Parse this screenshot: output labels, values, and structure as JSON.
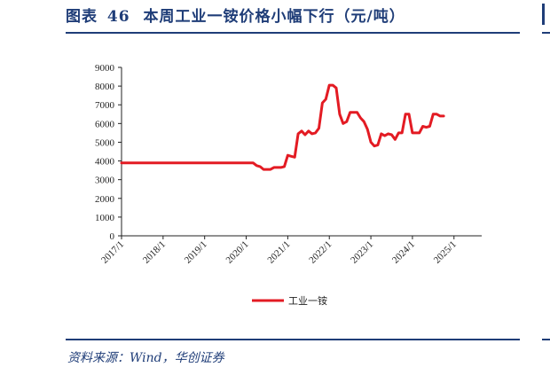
{
  "figure": {
    "title_prefix": "图表",
    "title_number": "46",
    "title_text": "本周工业一铵价格小幅下行（元/吨）",
    "source": "资料来源：Wind，华创证券"
  },
  "colors": {
    "brand": "#1f3d78",
    "series": "#e31b23"
  },
  "chart_data": {
    "type": "line",
    "title": "",
    "xlabel": "",
    "ylabel": "",
    "ylim": [
      0,
      9000
    ],
    "yticks": [
      0,
      1000,
      2000,
      3000,
      4000,
      5000,
      6000,
      7000,
      8000,
      9000
    ],
    "xlim": [
      "2017-01",
      "2025-09"
    ],
    "xticks": [
      "2017/1",
      "2018/1",
      "2019/1",
      "2020/1",
      "2021/1",
      "2022/1",
      "2023/1",
      "2024/1",
      "2025/1"
    ],
    "grid": false,
    "legend": "bottom",
    "series": [
      {
        "name": "工业一铵",
        "points": [
          [
            "2017-01",
            3900
          ],
          [
            "2018-01",
            3900
          ],
          [
            "2019-01",
            3900
          ],
          [
            "2020-01",
            3900
          ],
          [
            "2020-03",
            3900
          ],
          [
            "2020-04",
            3750
          ],
          [
            "2020-05",
            3700
          ],
          [
            "2020-06",
            3550
          ],
          [
            "2020-08",
            3550
          ],
          [
            "2020-09",
            3650
          ],
          [
            "2020-11",
            3650
          ],
          [
            "2020-12",
            3700
          ],
          [
            "2021-01",
            4300
          ],
          [
            "2021-02",
            4250
          ],
          [
            "2021-03",
            4200
          ],
          [
            "2021-04",
            5450
          ],
          [
            "2021-05",
            5600
          ],
          [
            "2021-06",
            5400
          ],
          [
            "2021-07",
            5600
          ],
          [
            "2021-08",
            5450
          ],
          [
            "2021-09",
            5500
          ],
          [
            "2021-10",
            5750
          ],
          [
            "2021-11",
            7100
          ],
          [
            "2021-12",
            7300
          ],
          [
            "2022-01",
            8050
          ],
          [
            "2022-02",
            8050
          ],
          [
            "2022-03",
            7900
          ],
          [
            "2022-04",
            6500
          ],
          [
            "2022-05",
            6000
          ],
          [
            "2022-06",
            6100
          ],
          [
            "2022-07",
            6600
          ],
          [
            "2022-08",
            6600
          ],
          [
            "2022-09",
            6600
          ],
          [
            "2022-10",
            6300
          ],
          [
            "2022-11",
            6100
          ],
          [
            "2022-12",
            5700
          ],
          [
            "2023-01",
            5000
          ],
          [
            "2023-02",
            4800
          ],
          [
            "2023-03",
            4850
          ],
          [
            "2023-04",
            5450
          ],
          [
            "2023-05",
            5350
          ],
          [
            "2023-06",
            5450
          ],
          [
            "2023-07",
            5400
          ],
          [
            "2023-08",
            5150
          ],
          [
            "2023-09",
            5500
          ],
          [
            "2023-10",
            5500
          ],
          [
            "2023-11",
            6500
          ],
          [
            "2023-12",
            6500
          ],
          [
            "2024-01",
            5500
          ],
          [
            "2024-02",
            5500
          ],
          [
            "2024-03",
            5500
          ],
          [
            "2024-04",
            5850
          ],
          [
            "2024-05",
            5800
          ],
          [
            "2024-06",
            5850
          ],
          [
            "2024-07",
            6500
          ],
          [
            "2024-08",
            6500
          ],
          [
            "2024-09",
            6400
          ],
          [
            "2024-10",
            6400
          ]
        ]
      }
    ]
  }
}
